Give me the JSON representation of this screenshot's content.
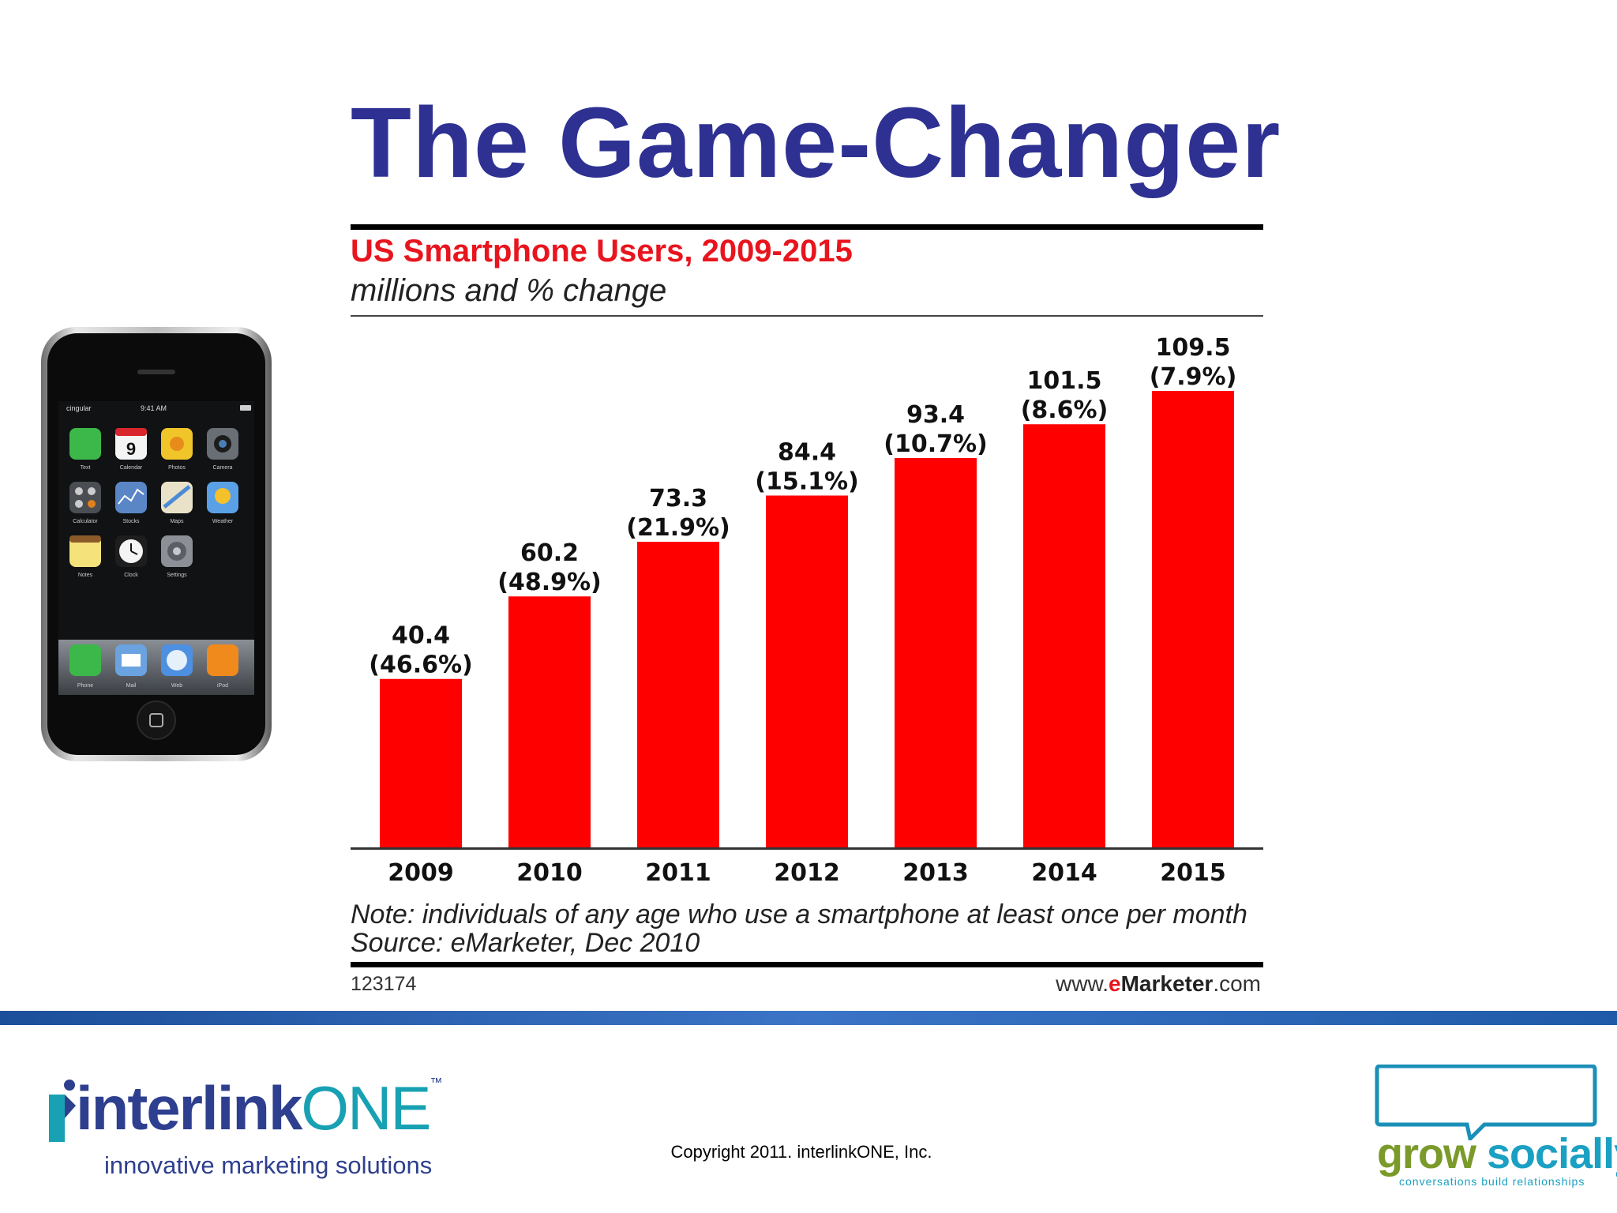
{
  "slide": {
    "title": "The Game-Changer",
    "copyright": "Copyright 2011. interlinkONE, Inc."
  },
  "chart_data": {
    "type": "bar",
    "title": "US Smartphone Users, 2009-2015",
    "subtitle": "millions and % change",
    "categories": [
      "2009",
      "2010",
      "2011",
      "2012",
      "2013",
      "2014",
      "2015"
    ],
    "values": [
      40.4,
      60.2,
      73.3,
      84.4,
      93.4,
      101.5,
      109.5
    ],
    "value_labels": [
      "40.4",
      "60.2",
      "73.3",
      "84.4",
      "93.4",
      "101.5",
      "109.5"
    ],
    "change_labels": [
      "(46.6%)",
      "(48.9%)",
      "(21.9%)",
      "(15.1%)",
      "(10.7%)",
      "(8.6%)",
      "(7.9%)"
    ],
    "xlabel": "",
    "ylabel": "",
    "ylim": [
      0,
      110
    ],
    "note": "Note: individuals of any age who use a smartphone at least once per month",
    "source": "Source: eMarketer, Dec 2010",
    "chart_id": "123174",
    "site_prefix": "www.",
    "site_e": "e",
    "site_brand": "Marketer",
    "site_suffix": ".com",
    "bar_color": "#ff0000"
  },
  "logos": {
    "left_name_a": "interlink",
    "left_name_b": "ONE",
    "left_tm": "™",
    "left_tagline": "innovative marketing solutions",
    "right_name_a": "grow",
    "right_name_b": "socially",
    "right_tagline": "conversations build relationships"
  },
  "phone": {
    "carrier": "cingular",
    "time": "9:41 AM",
    "calendar_day": "9",
    "apps": [
      "Text",
      "Calendar",
      "Photos",
      "Camera",
      "Calculator",
      "Stocks",
      "Maps",
      "Weather",
      "Notes",
      "Clock",
      "Settings"
    ],
    "dock": [
      "Phone",
      "Mail",
      "Web",
      "iPod"
    ]
  }
}
